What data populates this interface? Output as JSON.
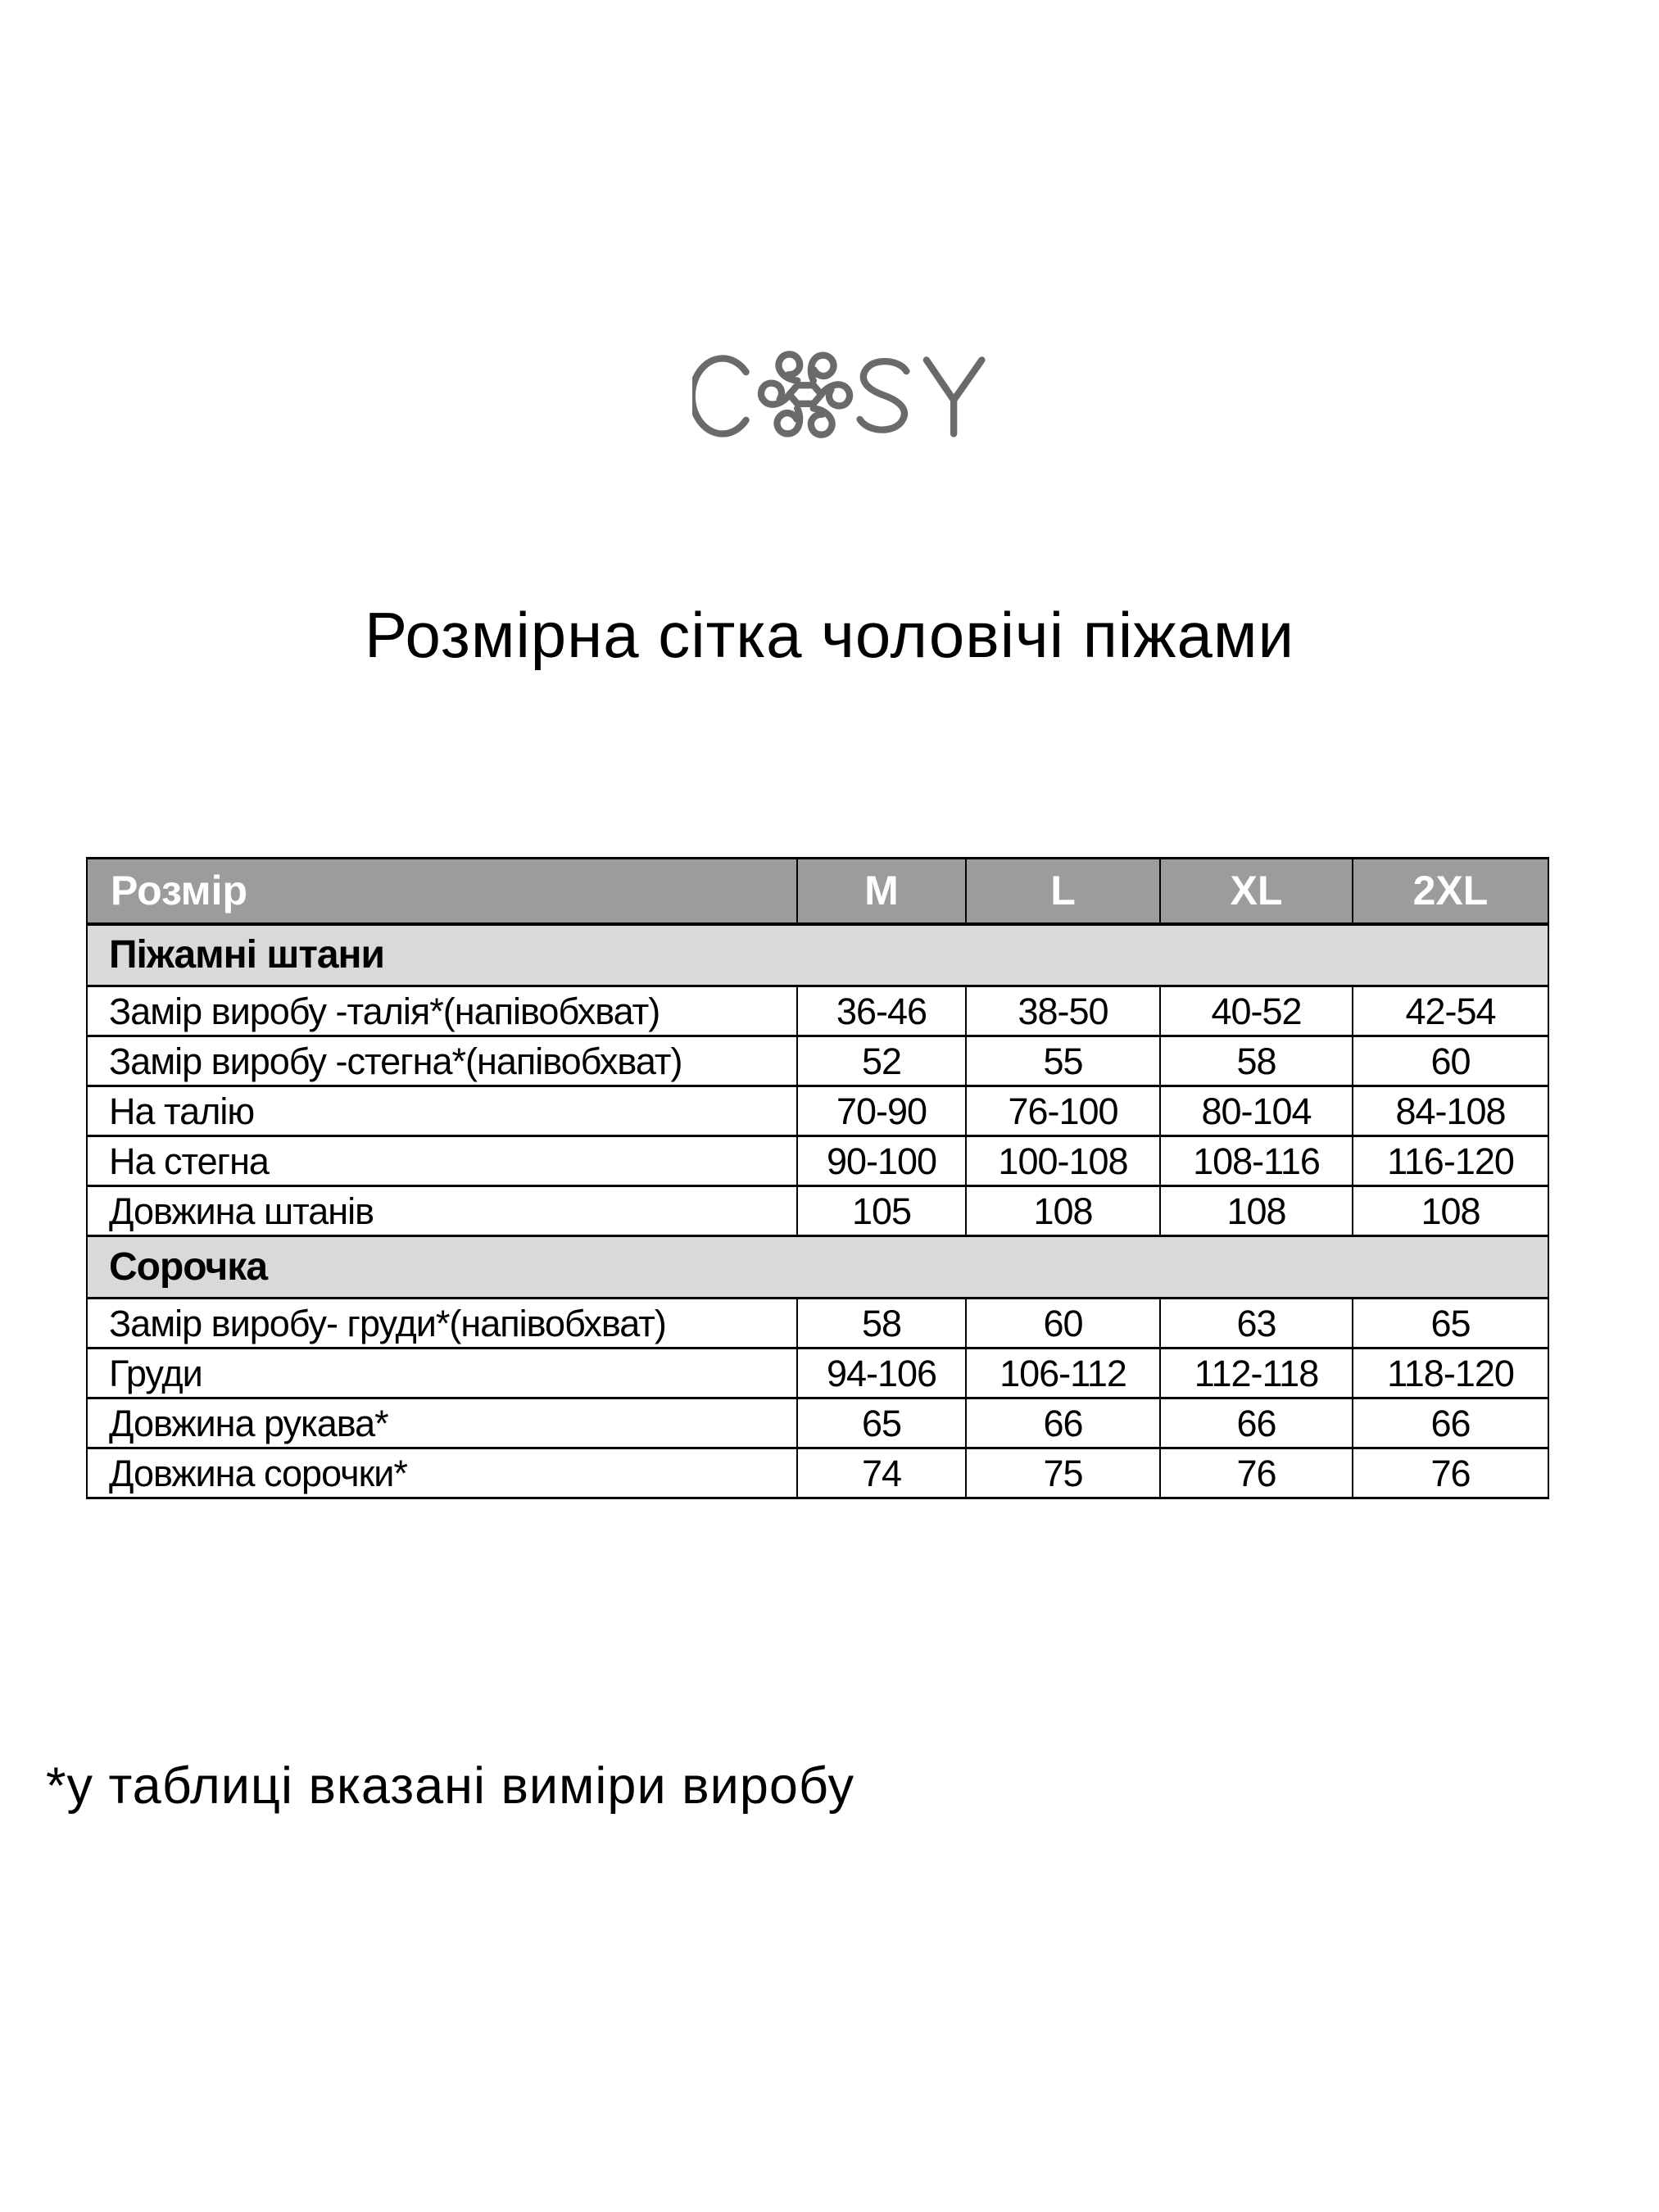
{
  "logo": {
    "left_text": "C",
    "right_text": "SY",
    "flower_icon": "swirl-flower-icon",
    "color": "#6a6a6a"
  },
  "title": "Розмірна сітка чоловічі піжами",
  "table": {
    "header": {
      "label": "Розмір",
      "sizes": [
        "M",
        "L",
        "XL",
        "2XL"
      ]
    },
    "sections": [
      {
        "title": "Піжамні штани",
        "rows": [
          {
            "label": "Замір виробу -талія*(напівобхват)",
            "values": [
              "36-46",
              "38-50",
              "40-52",
              "42-54"
            ]
          },
          {
            "label": "Замір виробу -стегна*(напівобхват)",
            "values": [
              "52",
              "55",
              "58",
              "60"
            ]
          },
          {
            "label": "На талію",
            "values": [
              "70-90",
              "76-100",
              "80-104",
              "84-108"
            ]
          },
          {
            "label": "На стегна",
            "values": [
              "90-100",
              "100-108",
              "108-116",
              "116-120"
            ]
          },
          {
            "label": "Довжина штанів",
            "values": [
              "105",
              "108",
              "108",
              "108"
            ]
          }
        ]
      },
      {
        "title": "Сорочка",
        "rows": [
          {
            "label": "Замір виробу- груди*(напівобхват)",
            "values": [
              "58",
              "60",
              "63",
              "65"
            ]
          },
          {
            "label": "Груди",
            "values": [
              "94-106",
              "106-112",
              "112-118",
              "118-120"
            ]
          },
          {
            "label": "Довжина рукава*",
            "values": [
              "65",
              "66",
              "66",
              "66"
            ]
          },
          {
            "label": "Довжина сорочки*",
            "values": [
              "74",
              "75",
              "76",
              "76"
            ]
          }
        ]
      }
    ]
  },
  "footnote": "*у таблиці вказані виміри виробу",
  "colors": {
    "header_bg": "#9c9c9c",
    "header_text": "#ffffff",
    "section_bg": "#d9d9d9",
    "border": "#000000",
    "body_text": "#000000",
    "logo_gray": "#6a6a6a",
    "page_bg": "#ffffff"
  }
}
